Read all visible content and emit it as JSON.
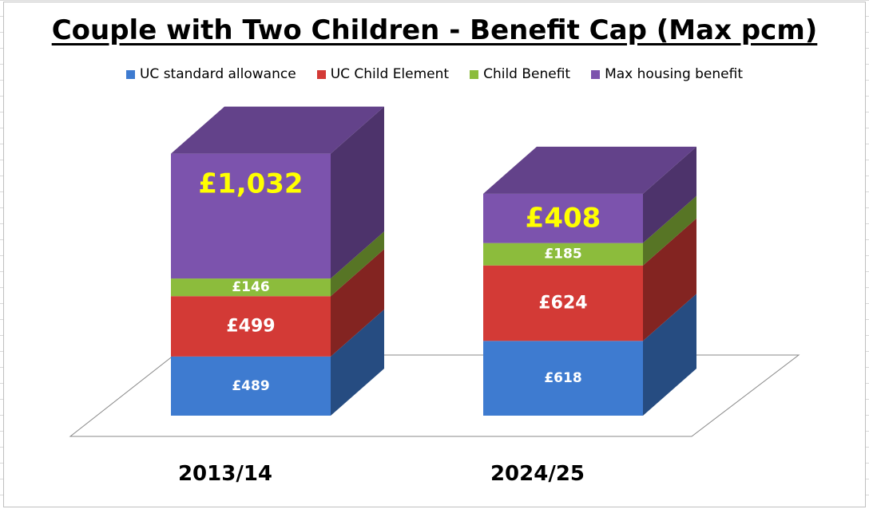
{
  "chart_data": {
    "type": "bar",
    "stacked": true,
    "three_d": true,
    "title": "Couple with Two Children - Benefit Cap (Max pcm)",
    "xlabel": "",
    "ylabel": "",
    "categories": [
      "2013/14",
      "2024/25"
    ],
    "series": [
      {
        "name": "UC standard allowance",
        "color": "#3e7bd0",
        "values": [
          489,
          618
        ],
        "labels": [
          "£489",
          "£618"
        ]
      },
      {
        "name": "UC Child Element",
        "color": "#d33a36",
        "values": [
          499,
          624
        ],
        "labels": [
          "£499",
          "£624"
        ]
      },
      {
        "name": "Child Benefit",
        "color": "#8cbc3c",
        "values": [
          146,
          185
        ],
        "labels": [
          "£146",
          "£185"
        ]
      },
      {
        "name": "Max housing benefit",
        "color": "#7c53ad",
        "values": [
          1032,
          408
        ],
        "labels": [
          "£1,032",
          "£408"
        ]
      }
    ],
    "ylim": [
      0,
      2200
    ],
    "grid": false,
    "legend_position": "top"
  }
}
